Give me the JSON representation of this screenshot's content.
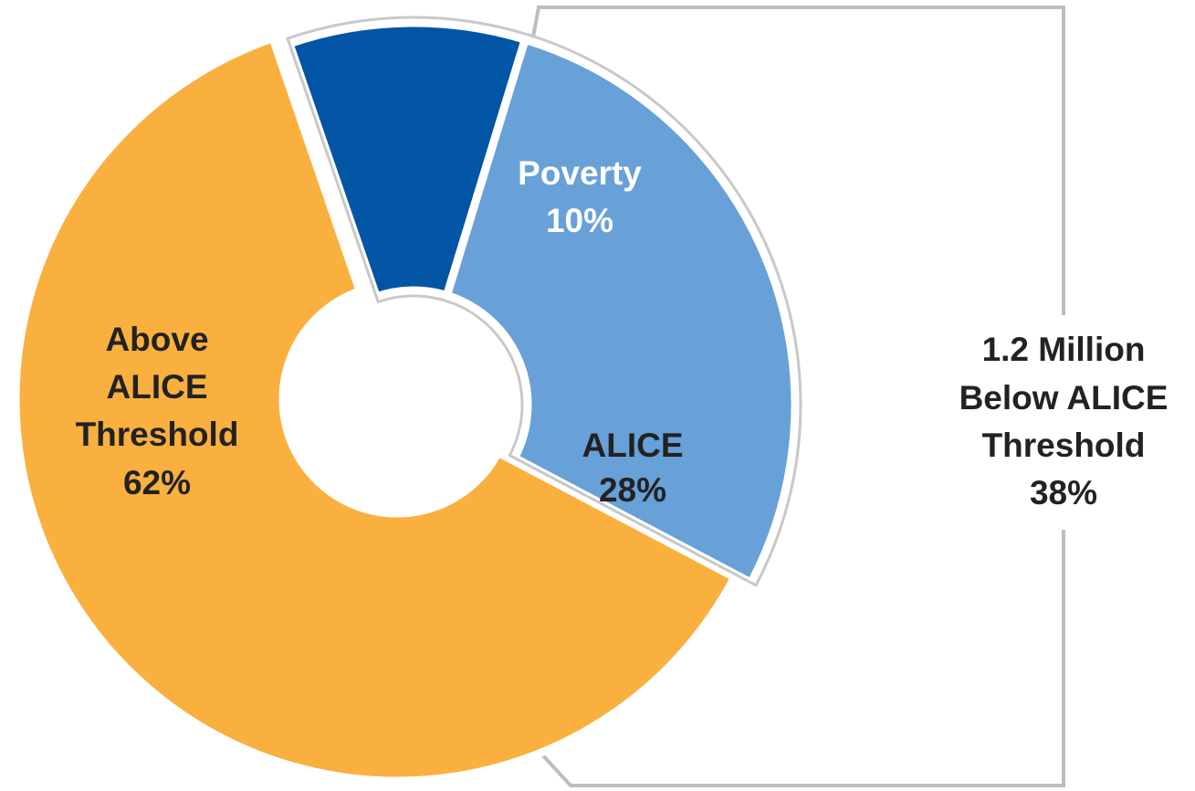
{
  "chart_data": {
    "type": "pie",
    "donut": true,
    "slices": [
      {
        "key": "above",
        "label_lines": [
          "Above",
          "ALICE",
          "Threshold"
        ],
        "value": 62,
        "value_text": "62%",
        "color": "#FAB03F",
        "text_color": "#222222"
      },
      {
        "key": "poverty",
        "label_lines": [
          "Poverty"
        ],
        "value": 10,
        "value_text": "10%",
        "color": "#0255A5",
        "text_color": "#ffffff"
      },
      {
        "key": "alice",
        "label_lines": [
          "ALICE"
        ],
        "value": 28,
        "value_text": "28%",
        "color": "#68A0D8",
        "text_color": "#222222"
      }
    ],
    "bracket": {
      "label_lines": [
        "1.2 Million",
        "Below ALICE",
        "Threshold"
      ],
      "value_text": "38%",
      "line_color": "#BDBDBD"
    }
  }
}
